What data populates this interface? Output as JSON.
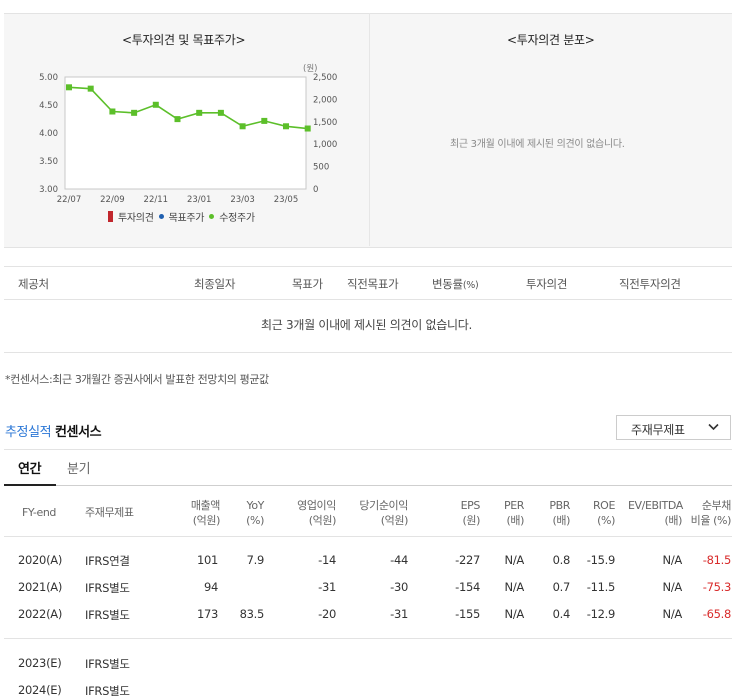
{
  "opinion_chart": {
    "title": "<투자의견 및 목표주가>",
    "legend": {
      "opinion": "투자의견",
      "target": "목표주가",
      "adjusted": "수정주가"
    },
    "colors": {
      "opinion": "#c1272d",
      "target": "#2060b0",
      "adjusted": "#5cbf2a"
    },
    "chart_data": {
      "type": "line",
      "title": "",
      "x_ticks": [
        "22/07",
        "22/09",
        "22/11",
        "23/01",
        "23/03",
        "23/05"
      ],
      "y_left_ticks": [
        "5.00",
        "4.50",
        "4.00",
        "3.50",
        "3.00"
      ],
      "y_left_lim": [
        3.0,
        5.0
      ],
      "y_right_ticks": [
        "2,500",
        "2,000",
        "1,500",
        "1,000",
        "500",
        "0"
      ],
      "y_right_lim": [
        0,
        2500
      ],
      "y_right_unit": "(원)",
      "series": [
        {
          "name": "수정주가",
          "x": [
            "2022-07",
            "2022-08",
            "2022-09",
            "2022-10",
            "2022-11",
            "2022-12",
            "2023-01",
            "2023-02",
            "2023-03",
            "2023-04",
            "2023-05",
            "2023-06"
          ],
          "values": [
            2270,
            2240,
            1730,
            1700,
            1880,
            1560,
            1700,
            1700,
            1400,
            1520,
            1400,
            1350
          ]
        }
      ],
      "grid": false,
      "legend_position": "bottom"
    }
  },
  "distribution": {
    "title": "<투자의견 분포>",
    "empty_message": "최근 3개월 이내에 제시된 의견이 없습니다."
  },
  "opinion_table": {
    "headers": [
      "제공처",
      "최종일자",
      "목표가",
      "직전목표가",
      "변동률",
      "(%)",
      "투자의견",
      "직전투자의견"
    ],
    "empty_message": "최근 3개월 이내에 제시된 의견이 없습니다."
  },
  "footnote": "*컨센서스:최근 3개월간 증권사에서 발표한 전망치의 평균값",
  "consensus": {
    "title_accent": "추정실적",
    "title_rest": "컨센서스",
    "select_value": "주재무제표",
    "tabs": [
      "연간",
      "분기"
    ],
    "headers": {
      "fy": "FY-end",
      "basis": "주재무제표",
      "sales": [
        "매출액",
        "(억원)"
      ],
      "yoy": [
        "YoY",
        "(%)"
      ],
      "op": [
        "영업이익",
        "(억원)"
      ],
      "net": [
        "당기순이익",
        "(억원)"
      ],
      "eps": [
        "EPS",
        "(원)"
      ],
      "per": [
        "PER",
        "(배)"
      ],
      "pbr": [
        "PBR",
        "(배)"
      ],
      "roe": [
        "ROE",
        "(%)"
      ],
      "ev": [
        "EV/EBITDA",
        "(배)"
      ],
      "debt": [
        "순부채",
        "비율 (%)"
      ]
    },
    "rows": [
      {
        "fy": "2020(A)",
        "basis": "IFRS연결",
        "sales": "101",
        "yoy": "7.9",
        "op": "-14",
        "net": "-44",
        "eps": "-227",
        "per": "N/A",
        "pbr": "0.8",
        "roe": "-15.9",
        "ev": "N/A",
        "debt": "-81.5"
      },
      {
        "fy": "2021(A)",
        "basis": "IFRS별도",
        "sales": "94",
        "yoy": "",
        "op": "-31",
        "net": "-30",
        "eps": "-154",
        "per": "N/A",
        "pbr": "0.7",
        "roe": "-11.5",
        "ev": "N/A",
        "debt": "-75.3"
      },
      {
        "fy": "2022(A)",
        "basis": "IFRS별도",
        "sales": "173",
        "yoy": "83.5",
        "op": "-20",
        "net": "-31",
        "eps": "-155",
        "per": "N/A",
        "pbr": "0.4",
        "roe": "-12.9",
        "ev": "N/A",
        "debt": "-65.8"
      },
      {
        "fy": "2023(E)",
        "basis": "IFRS별도",
        "sales": "",
        "yoy": "",
        "op": "",
        "net": "",
        "eps": "",
        "per": "",
        "pbr": "",
        "roe": "",
        "ev": "",
        "debt": ""
      },
      {
        "fy": "2024(E)",
        "basis": "IFRS별도",
        "sales": "",
        "yoy": "",
        "op": "",
        "net": "",
        "eps": "",
        "per": "",
        "pbr": "",
        "roe": "",
        "ev": "",
        "debt": ""
      }
    ]
  }
}
